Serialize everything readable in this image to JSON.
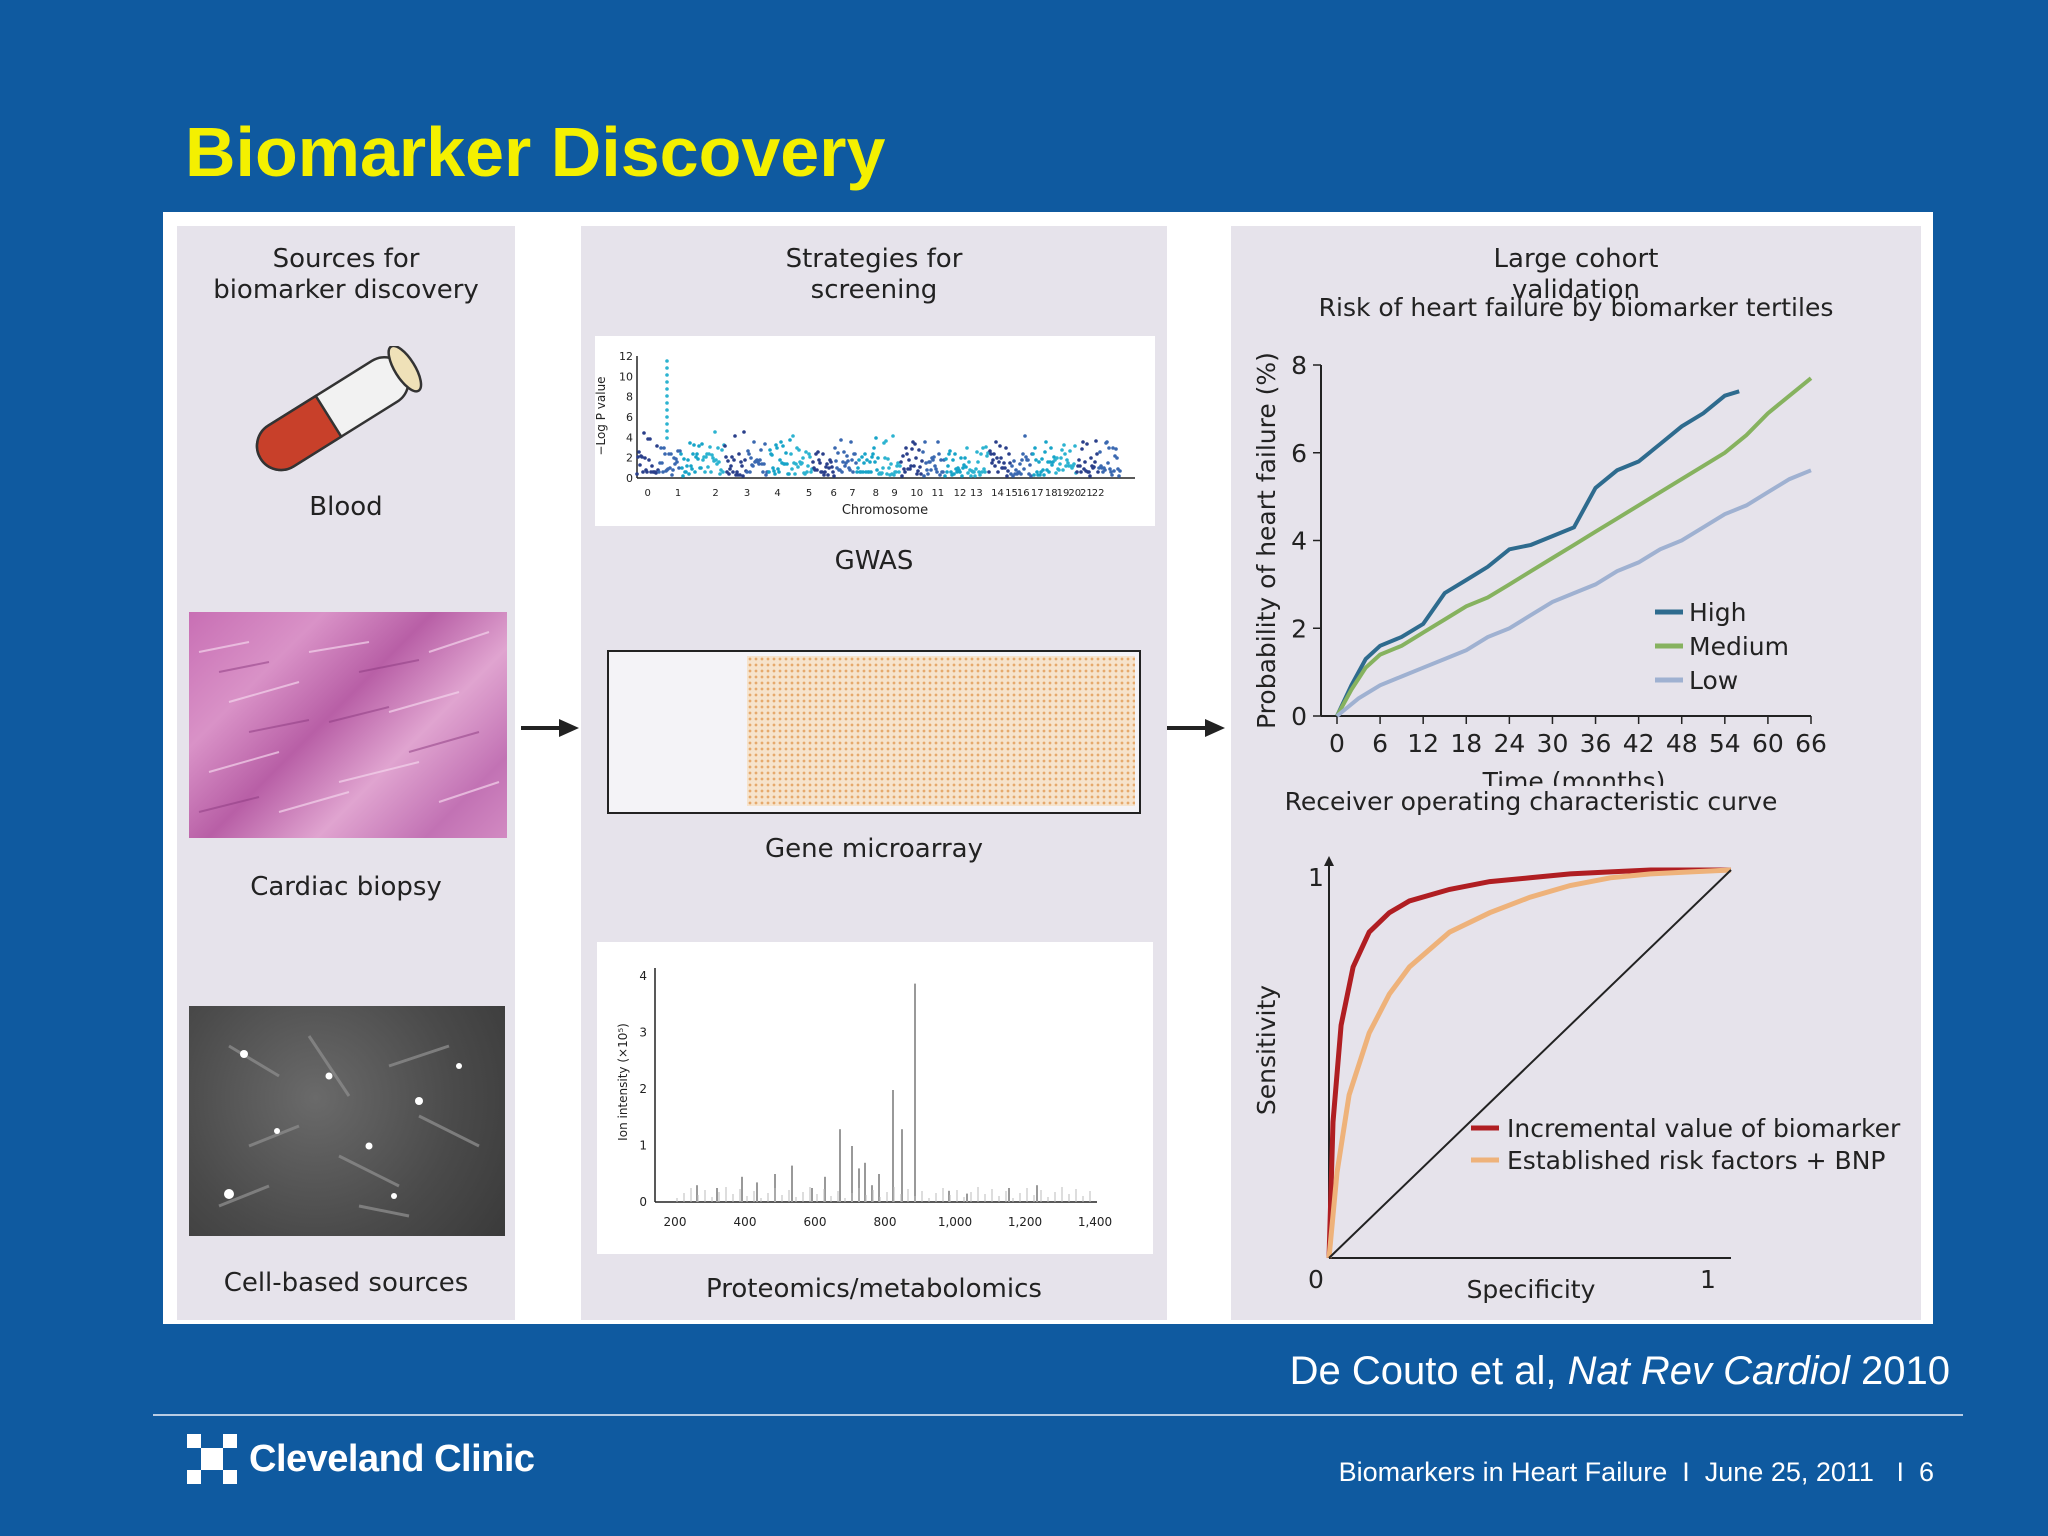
{
  "slide": {
    "title": "Biomarker Discovery",
    "citation_authors": "De Couto et al, ",
    "citation_journal": "Nat Rev Cardiol",
    "citation_year": " 2010",
    "footer_title": "Biomarkers in Heart Failure",
    "footer_sep1": "I",
    "footer_date": "June 25, 2011",
    "footer_sep2": "I",
    "footer_page": "6",
    "logo_text": "Cleveland Clinic",
    "colors": {
      "background": "#0f5aa0",
      "title": "#f4f000",
      "panel": "#e6e3eb"
    }
  },
  "sources": {
    "heading_line1": "Sources for",
    "heading_line2": "biomarker discovery",
    "items": [
      {
        "label": "Blood",
        "icon": "blood-tube-icon"
      },
      {
        "label": "Cardiac biopsy",
        "icon": "biopsy-micrograph"
      },
      {
        "label": "Cell-based sources",
        "icon": "cell-culture-micrograph"
      }
    ]
  },
  "screening": {
    "heading_line1": "Strategies for",
    "heading_line2": "screening",
    "gwas": {
      "label": "GWAS",
      "ylabel": "−Log P value",
      "xlabel": "Chromosome",
      "y_ticks": [
        "0",
        "2",
        "4",
        "6",
        "8",
        "10",
        "12"
      ],
      "x_ticks": [
        "0",
        "1",
        "2",
        "3",
        "4",
        "5",
        "6",
        "7",
        "8",
        "9",
        "10",
        "11",
        "12",
        "13",
        "14",
        "15",
        "16",
        "17",
        "18",
        "19",
        "20",
        "21",
        "22"
      ]
    },
    "microarray": {
      "label": "Gene microarray"
    },
    "proteomics": {
      "label": "Proteomics/metabolomics",
      "ylabel": "Ion intensity (×10⁵)",
      "y_ticks": [
        "0",
        "1",
        "2",
        "3",
        "4"
      ],
      "x_ticks": [
        "200",
        "400",
        "600",
        "800",
        "1,000",
        "1,200",
        "1,400"
      ]
    }
  },
  "validation": {
    "heading_line1": "Large cohort",
    "heading_line2": "validation",
    "risk_chart": {
      "type": "line",
      "title": "Risk of heart failure by biomarker tertiles",
      "xlabel": "Time (months)",
      "ylabel": "Probability of heart failure (%)",
      "x_ticks": [
        0,
        6,
        12,
        18,
        24,
        30,
        36,
        42,
        48,
        54,
        60,
        66
      ],
      "y_ticks": [
        0,
        2,
        4,
        6,
        8
      ],
      "xlim": [
        0,
        66
      ],
      "ylim": [
        0,
        8
      ],
      "legend_position": "right",
      "series": [
        {
          "name": "High",
          "color": "#2e6b8e",
          "x": [
            0,
            2,
            4,
            6,
            9,
            12,
            15,
            18,
            21,
            24,
            27,
            30,
            33,
            36,
            39,
            42,
            45,
            48,
            51,
            54,
            56
          ],
          "y": [
            0,
            0.7,
            1.3,
            1.6,
            1.8,
            2.1,
            2.8,
            3.1,
            3.4,
            3.8,
            3.9,
            4.1,
            4.3,
            5.2,
            5.6,
            5.8,
            6.2,
            6.6,
            6.9,
            7.3,
            7.4
          ]
        },
        {
          "name": "Medium",
          "color": "#86b25f",
          "x": [
            0,
            2,
            4,
            6,
            9,
            12,
            15,
            18,
            21,
            24,
            27,
            30,
            33,
            36,
            39,
            42,
            45,
            48,
            51,
            54,
            57,
            60,
            63,
            66
          ],
          "y": [
            0,
            0.6,
            1.1,
            1.4,
            1.6,
            1.9,
            2.2,
            2.5,
            2.7,
            3.0,
            3.3,
            3.6,
            3.9,
            4.2,
            4.5,
            4.8,
            5.1,
            5.4,
            5.7,
            6.0,
            6.4,
            6.9,
            7.3,
            7.7
          ]
        },
        {
          "name": "Low",
          "color": "#9fb1d1",
          "x": [
            0,
            3,
            6,
            9,
            12,
            15,
            18,
            21,
            24,
            27,
            30,
            33,
            36,
            39,
            42,
            45,
            48,
            51,
            54,
            57,
            60,
            63,
            66
          ],
          "y": [
            0,
            0.4,
            0.7,
            0.9,
            1.1,
            1.3,
            1.5,
            1.8,
            2.0,
            2.3,
            2.6,
            2.8,
            3.0,
            3.3,
            3.5,
            3.8,
            4.0,
            4.3,
            4.6,
            4.8,
            5.1,
            5.4,
            5.6
          ]
        }
      ]
    },
    "roc_chart": {
      "type": "line",
      "title": "Receiver operating characteristic curve",
      "xlabel": "Specificity",
      "ylabel": "Sensitivity",
      "x_tick_min": "0",
      "x_tick_max": "1",
      "y_tick_max": "1",
      "xlim": [
        0,
        1
      ],
      "ylim": [
        0,
        1
      ],
      "legend_position": "bottom-right",
      "series": [
        {
          "name": "Incremental value of biomarker",
          "color": "#b01e22",
          "x": [
            0,
            0.01,
            0.03,
            0.06,
            0.1,
            0.15,
            0.2,
            0.3,
            0.4,
            0.5,
            0.6,
            0.7,
            0.8,
            0.9,
            1
          ],
          "y": [
            0,
            0.35,
            0.6,
            0.75,
            0.84,
            0.89,
            0.92,
            0.95,
            0.97,
            0.98,
            0.99,
            0.995,
            1,
            1,
            1
          ]
        },
        {
          "name": "Established risk factors + BNP",
          "color": "#eeb27a",
          "x": [
            0,
            0.02,
            0.05,
            0.1,
            0.15,
            0.2,
            0.3,
            0.4,
            0.5,
            0.6,
            0.7,
            0.8,
            0.9,
            1
          ],
          "y": [
            0,
            0.22,
            0.42,
            0.58,
            0.68,
            0.75,
            0.84,
            0.89,
            0.93,
            0.96,
            0.98,
            0.99,
            0.995,
            1
          ]
        },
        {
          "name": "",
          "color": "#222222",
          "x": [
            0,
            1
          ],
          "y": [
            0,
            1
          ]
        }
      ]
    }
  }
}
